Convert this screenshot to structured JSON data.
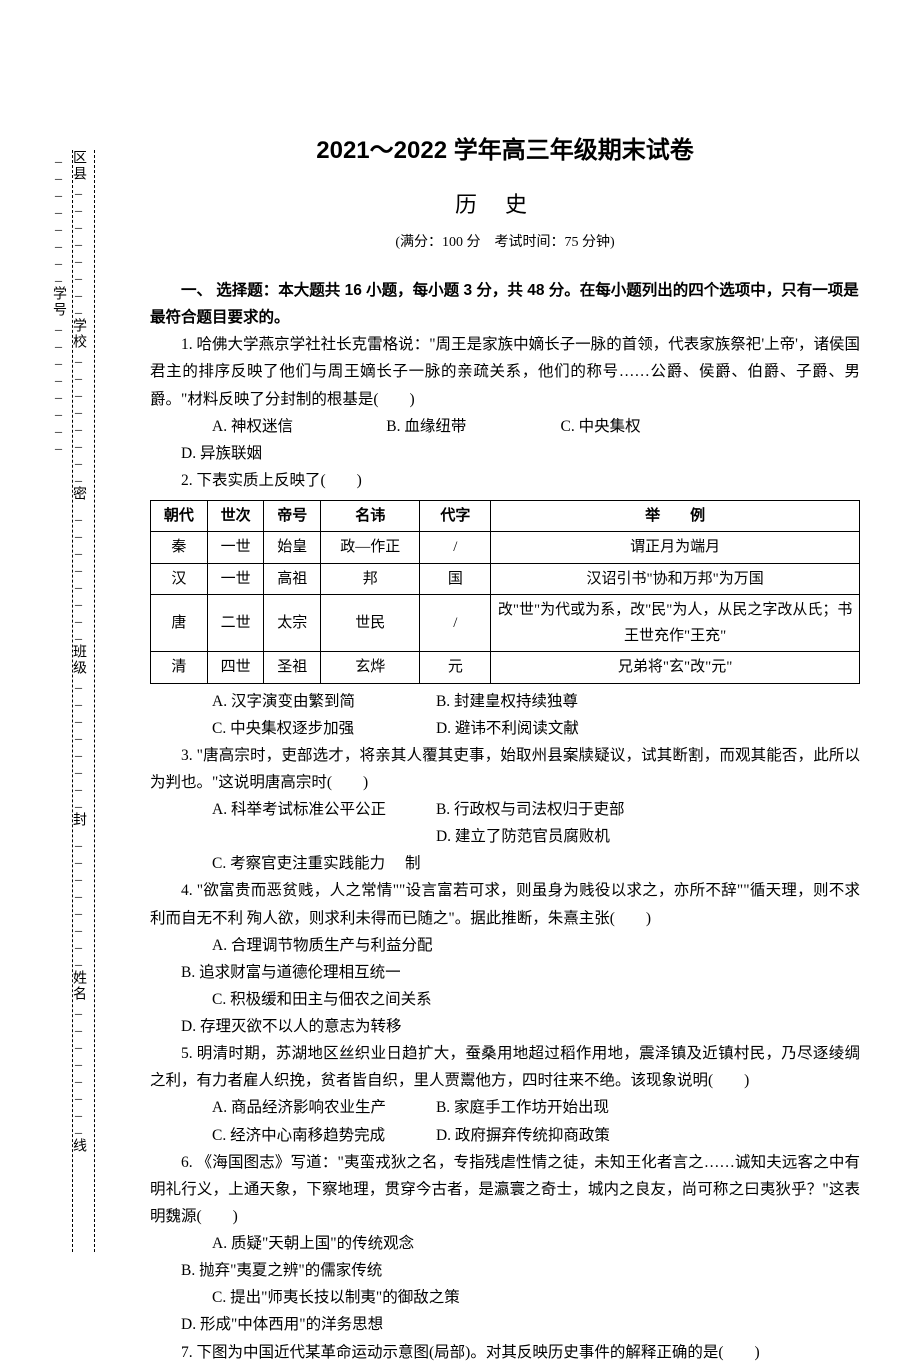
{
  "sidebar": {
    "dashed_note": "密………封………线",
    "fields": [
      "区县",
      "学校",
      "班级",
      "姓名",
      "学号"
    ]
  },
  "header": {
    "title": "2021～2022 学年高三年级期末试卷",
    "subject": "历史",
    "meta": "(满分：100 分　考试时间：75 分钟)"
  },
  "section1_head": "一、 选择题：本大题共 16 小题，每小题 3 分，共 48 分。在每小题列出的四个选项中，只有一项是最符合题目要求的。",
  "q1": {
    "text": "1. 哈佛大学燕京学社社长克雷格说：\"周王是家族中嫡长子一脉的首领，代表家族祭祀'上帝'，诸侯国君主的排序反映了他们与周王嫡长子一脉的亲疏关系，他们的称号……公爵、侯爵、伯爵、子爵、男爵。\"材料反映了分封制的根基是(　　)",
    "A": "A. 神权迷信",
    "B": "B. 血缘纽带",
    "C": "C. 中央集权",
    "D": "D. 异族联姻"
  },
  "q2": {
    "text": "2. 下表实质上反映了(　　)",
    "table": {
      "headers": [
        "朝代",
        "世次",
        "帝号",
        "名讳",
        "代字",
        "举　　例"
      ],
      "rows": [
        [
          "秦",
          "一世",
          "始皇",
          "政—作正",
          "/",
          "谓正月为端月"
        ],
        [
          "汉",
          "一世",
          "高祖",
          "邦",
          "国",
          "汉诏引书\"协和万邦\"为万国"
        ],
        [
          "唐",
          "二世",
          "太宗",
          "世民",
          "/",
          "改\"世\"为代或为系，改\"民\"为人，从民之字改从氏；书王世充作\"王充\""
        ],
        [
          "清",
          "四世",
          "圣祖",
          "玄烨",
          "元",
          "兄弟将\"玄\"改\"元\""
        ]
      ]
    },
    "A": "A. 汉字演变由繁到简",
    "B": "B. 封建皇权持续独尊",
    "C": "C. 中央集权逐步加强",
    "D": "D. 避讳不利阅读文献"
  },
  "q3": {
    "text": "3. \"唐高宗时，吏部选才，将亲其人覆其吏事，始取州县案牍疑议，试其断割，而观其能否，此所以为判也。\"这说明唐高宗时(　　)",
    "A": "A. 科举考试标准公平公正",
    "B": "B. 行政权与司法权归于吏部",
    "C": "C. 考察官吏注重实践能力",
    "D": "D. 建立了防范官员腐败机制"
  },
  "q4": {
    "text": "4. \"欲富贵而恶贫贱，人之常情\"\"设言富若可求，则虽身为贱役以求之，亦所不辞\"\"循天理，则不求利而自无不利 殉人欲，则求利未得而已随之\"。据此推断，朱熹主张(　　)",
    "A": "A. 合理调节物质生产与利益分配",
    "B": "B. 追求财富与道德伦理相互统一",
    "C": "C. 积极缓和田主与佃农之间关系",
    "D": "D. 存理灭欲不以人的意志为转移"
  },
  "q5": {
    "text": "5. 明清时期，苏湖地区丝织业日趋扩大，蚕桑用地超过稻作用地，震泽镇及近镇村民，乃尽逐绫绸之利，有力者雇人织挽，贫者皆自织，里人贾鬻他方，四时往来不绝。该现象说明(　　)",
    "A": "A. 商品经济影响农业生产",
    "B": "B. 家庭手工作坊开始出现",
    "C": "C. 经济中心南移趋势完成",
    "D": "D. 政府摒弃传统抑商政策"
  },
  "q6": {
    "text": "6. 《海国图志》写道：\"夷蛮戎狄之名，专指残虐性情之徒，未知王化者言之……诚知夫远客之中有明礼行义，上通天象，下察地理，贯穿今古者，是瀛寰之奇士，城内之良友，尚可称之曰夷狄乎？\"这表明魏源(　　)",
    "A": "A. 质疑\"天朝上国\"的传统观念",
    "B": "B. 抛弃\"夷夏之辨\"的儒家传统",
    "C": "C. 提出\"师夷长技以制夷\"的御敌之策",
    "D": "D. 形成\"中体西用\"的洋务思想"
  },
  "q7": {
    "text": "7. 下图为中国近代某革命运动示意图(局部)。对其反映历史事件的解释正确的是(　　)"
  }
}
